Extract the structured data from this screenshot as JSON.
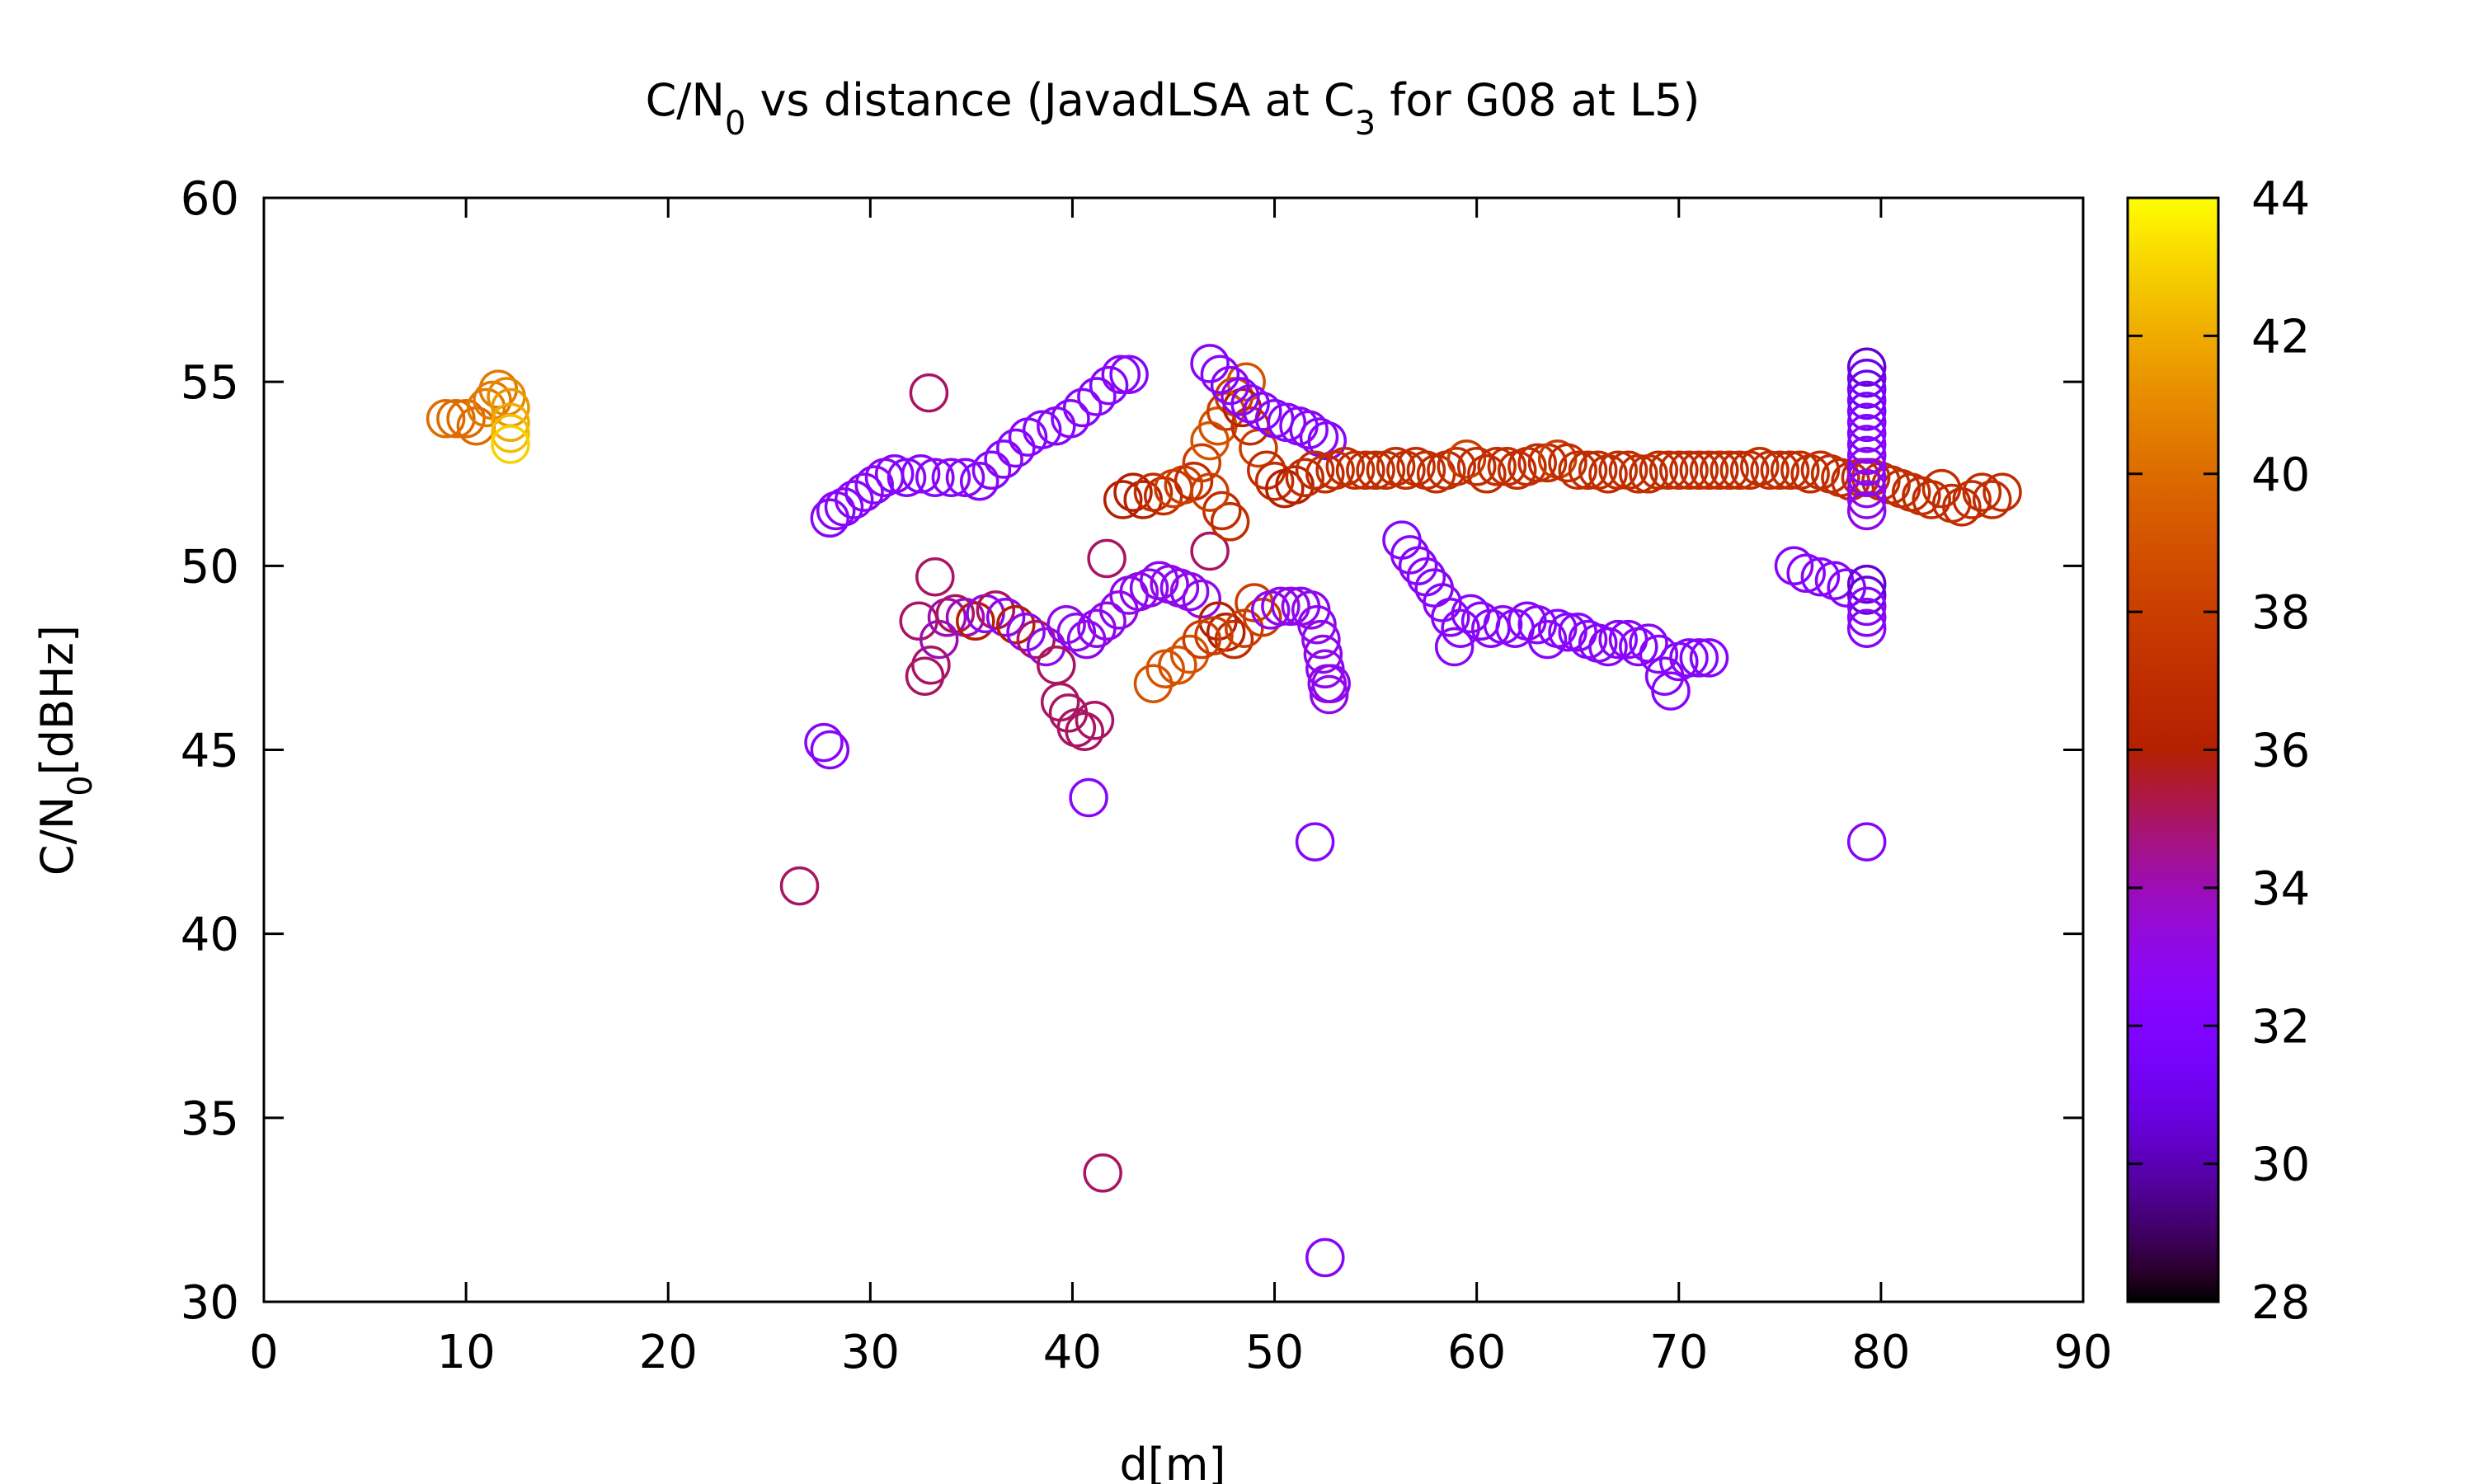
{
  "chart_data": {
    "type": "scatter",
    "title": {
      "parts": [
        {
          "text": "C/N",
          "sub": false
        },
        {
          "text": "0",
          "sub": true
        },
        {
          "text": " vs distance (JavadLSA at C",
          "sub": false
        },
        {
          "text": "3",
          "sub": true
        },
        {
          "text": " for G08 at L5)",
          "sub": false
        }
      ]
    },
    "xlabel": "d[m]",
    "ylabel": {
      "parts": [
        {
          "text": "C/N",
          "sub": false
        },
        {
          "text": "0",
          "sub": true
        },
        {
          "text": "[dBHz]",
          "sub": false
        }
      ]
    },
    "xlim": [
      0,
      90
    ],
    "ylim": [
      30,
      60
    ],
    "xticks": [
      0,
      10,
      20,
      30,
      40,
      50,
      60,
      70,
      80,
      90
    ],
    "yticks": [
      30,
      35,
      40,
      45,
      50,
      55,
      60
    ],
    "colorbar": {
      "range": [
        28,
        44
      ],
      "ticks": [
        28,
        30,
        32,
        34,
        36,
        38,
        40,
        42,
        44
      ],
      "palette": "gnuplot-pm3d-7-5-15"
    },
    "marker": "open-circle",
    "grid": false,
    "points": [
      [
        9.0,
        54.0,
        40
      ],
      [
        9.5,
        54.0,
        40
      ],
      [
        10.0,
        54.0,
        40
      ],
      [
        10.5,
        53.8,
        40
      ],
      [
        11.0,
        54.3,
        40.5
      ],
      [
        11.3,
        54.5,
        40.5
      ],
      [
        11.6,
        54.8,
        40.5
      ],
      [
        12.0,
        54.6,
        41
      ],
      [
        12.2,
        54.3,
        41.5
      ],
      [
        12.2,
        53.9,
        42
      ],
      [
        12.2,
        53.6,
        42.5
      ],
      [
        12.2,
        53.3,
        43
      ],
      [
        26.5,
        41.3,
        35
      ],
      [
        27.7,
        45.2,
        32.5
      ],
      [
        28.0,
        45.0,
        32.5
      ],
      [
        28.0,
        51.3,
        32.5
      ],
      [
        28.3,
        51.5,
        32.5
      ],
      [
        28.7,
        51.6,
        32.5
      ],
      [
        29.2,
        51.8,
        32.5
      ],
      [
        29.7,
        52.0,
        32.5
      ],
      [
        30.2,
        52.2,
        32.5
      ],
      [
        30.7,
        52.4,
        32.5
      ],
      [
        31.2,
        52.5,
        32.5
      ],
      [
        31.8,
        52.4,
        32.5
      ],
      [
        32.5,
        52.5,
        32.5
      ],
      [
        33.2,
        52.4,
        32.5
      ],
      [
        34.0,
        52.4,
        32.5
      ],
      [
        34.7,
        52.4,
        32.5
      ],
      [
        35.4,
        52.3,
        32.5
      ],
      [
        36.0,
        52.6,
        32.5
      ],
      [
        36.6,
        52.9,
        32.5
      ],
      [
        37.2,
        53.2,
        32.5
      ],
      [
        37.8,
        53.5,
        32.5
      ],
      [
        38.5,
        53.7,
        32.5
      ],
      [
        39.2,
        53.8,
        32.5
      ],
      [
        39.9,
        54.0,
        32.5
      ],
      [
        40.5,
        54.3,
        32.5
      ],
      [
        41.2,
        54.6,
        32.5
      ],
      [
        41.8,
        54.9,
        32.5
      ],
      [
        42.4,
        55.2,
        32.5
      ],
      [
        42.8,
        55.2,
        32.5
      ],
      [
        32.9,
        54.7,
        35
      ],
      [
        33.2,
        49.7,
        35
      ],
      [
        32.4,
        48.5,
        35
      ],
      [
        32.7,
        47.0,
        35
      ],
      [
        33.0,
        47.3,
        35
      ],
      [
        33.4,
        48.0,
        34
      ],
      [
        33.8,
        48.6,
        34
      ],
      [
        34.2,
        48.7,
        35
      ],
      [
        34.7,
        48.6,
        34
      ],
      [
        35.2,
        48.5,
        36
      ],
      [
        35.7,
        48.7,
        33
      ],
      [
        36.2,
        48.8,
        35
      ],
      [
        36.7,
        48.6,
        33
      ],
      [
        37.2,
        48.4,
        36
      ],
      [
        37.7,
        48.2,
        33
      ],
      [
        38.2,
        48.0,
        35
      ],
      [
        38.7,
        47.8,
        33
      ],
      [
        39.2,
        47.3,
        35
      ],
      [
        39.4,
        46.3,
        35
      ],
      [
        39.8,
        46.0,
        35
      ],
      [
        40.2,
        45.6,
        35
      ],
      [
        40.6,
        45.5,
        35
      ],
      [
        41.1,
        45.8,
        35
      ],
      [
        39.7,
        48.4,
        33
      ],
      [
        40.2,
        48.2,
        33
      ],
      [
        40.7,
        48.0,
        33
      ],
      [
        41.2,
        48.3,
        33
      ],
      [
        41.7,
        48.5,
        33
      ],
      [
        41.7,
        50.2,
        35
      ],
      [
        42.3,
        48.8,
        33
      ],
      [
        42.8,
        49.2,
        33
      ],
      [
        43.3,
        49.3,
        33
      ],
      [
        43.8,
        49.4,
        33
      ],
      [
        44.3,
        49.6,
        33
      ],
      [
        44.8,
        49.5,
        33
      ],
      [
        45.3,
        49.4,
        33
      ],
      [
        45.8,
        49.3,
        33
      ],
      [
        46.4,
        49.1,
        33
      ],
      [
        46.8,
        50.4,
        35
      ],
      [
        47.2,
        48.5,
        36
      ],
      [
        47.6,
        48.2,
        36
      ],
      [
        48.0,
        48.0,
        37
      ],
      [
        48.5,
        48.3,
        38
      ],
      [
        49.0,
        49.0,
        38
      ],
      [
        49.4,
        48.6,
        38
      ],
      [
        49.8,
        48.8,
        33
      ],
      [
        50.3,
        48.9,
        33
      ],
      [
        50.8,
        48.9,
        33
      ],
      [
        51.3,
        48.9,
        33
      ],
      [
        51.8,
        48.8,
        33
      ],
      [
        52.1,
        48.4,
        33
      ],
      [
        52.3,
        48.0,
        33
      ],
      [
        52.4,
        47.6,
        33
      ],
      [
        52.5,
        47.2,
        33
      ],
      [
        52.6,
        46.8,
        33
      ],
      [
        52.7,
        46.5,
        33
      ],
      [
        52.8,
        46.8,
        33
      ],
      [
        44.0,
        46.8,
        39
      ],
      [
        44.6,
        47.2,
        39
      ],
      [
        45.2,
        47.3,
        39
      ],
      [
        45.8,
        47.6,
        39
      ],
      [
        46.4,
        48.0,
        38
      ],
      [
        47.0,
        48.1,
        38
      ],
      [
        40.8,
        43.7,
        32.5
      ],
      [
        41.5,
        33.5,
        35
      ],
      [
        52.0,
        42.5,
        32.5
      ],
      [
        52.5,
        31.2,
        32.5
      ],
      [
        79.3,
        42.5,
        32.5
      ],
      [
        42.5,
        51.8,
        36
      ],
      [
        43.0,
        52.0,
        36
      ],
      [
        43.5,
        51.8,
        36
      ],
      [
        44.0,
        52.0,
        37
      ],
      [
        44.5,
        51.9,
        37
      ],
      [
        45.0,
        52.1,
        38
      ],
      [
        45.5,
        52.2,
        38
      ],
      [
        46.0,
        52.3,
        37
      ],
      [
        46.4,
        52.8,
        38
      ],
      [
        46.8,
        53.4,
        39
      ],
      [
        47.2,
        53.8,
        39
      ],
      [
        47.6,
        54.2,
        38
      ],
      [
        48.0,
        54.6,
        38
      ],
      [
        48.4,
        54.3,
        36
      ],
      [
        48.8,
        53.8,
        37
      ],
      [
        49.2,
        53.2,
        38
      ],
      [
        49.6,
        52.6,
        37
      ],
      [
        50.0,
        52.3,
        37
      ],
      [
        50.5,
        52.1,
        36
      ],
      [
        51.0,
        52.2,
        36
      ],
      [
        47.4,
        51.5,
        37
      ],
      [
        47.8,
        51.2,
        37
      ],
      [
        46.8,
        52.0,
        38
      ],
      [
        48.6,
        55.0,
        39
      ],
      [
        46.8,
        55.5,
        32.5
      ],
      [
        47.3,
        55.2,
        32.5
      ],
      [
        47.8,
        54.9,
        32.5
      ],
      [
        48.3,
        54.6,
        32.5
      ],
      [
        48.8,
        54.4,
        32.5
      ],
      [
        49.4,
        54.2,
        32.5
      ],
      [
        50.0,
        54.0,
        32.5
      ],
      [
        50.6,
        53.9,
        32.5
      ],
      [
        51.2,
        53.8,
        32.5
      ],
      [
        51.7,
        53.7,
        32.5
      ],
      [
        52.2,
        53.5,
        32.5
      ],
      [
        52.6,
        53.4,
        32.5
      ],
      [
        51.5,
        52.4,
        37
      ],
      [
        52.0,
        52.6,
        37
      ],
      [
        52.5,
        52.5,
        37
      ],
      [
        53.0,
        52.6,
        37
      ],
      [
        53.5,
        52.7,
        37
      ],
      [
        54.0,
        52.6,
        37
      ],
      [
        54.5,
        52.6,
        37
      ],
      [
        55.0,
        52.6,
        37
      ],
      [
        55.5,
        52.6,
        37
      ],
      [
        56.0,
        52.7,
        37
      ],
      [
        56.5,
        52.6,
        37
      ],
      [
        57.0,
        52.7,
        37
      ],
      [
        57.5,
        52.6,
        37
      ],
      [
        58.0,
        52.5,
        37
      ],
      [
        58.5,
        52.6,
        37
      ],
      [
        59.0,
        52.7,
        37
      ],
      [
        59.5,
        52.9,
        38
      ],
      [
        60.0,
        52.7,
        37
      ],
      [
        60.5,
        52.5,
        37
      ],
      [
        61.0,
        52.7,
        37
      ],
      [
        61.5,
        52.7,
        37
      ],
      [
        62.0,
        52.6,
        37
      ],
      [
        62.5,
        52.7,
        37
      ],
      [
        63.0,
        52.8,
        37
      ],
      [
        63.5,
        52.8,
        37
      ],
      [
        64.0,
        52.9,
        38
      ],
      [
        64.5,
        52.8,
        37
      ],
      [
        65.0,
        52.6,
        37
      ],
      [
        65.5,
        52.6,
        37
      ],
      [
        66.0,
        52.6,
        37
      ],
      [
        66.5,
        52.5,
        37
      ],
      [
        67.0,
        52.6,
        37
      ],
      [
        67.5,
        52.6,
        37
      ],
      [
        68.0,
        52.5,
        37
      ],
      [
        68.5,
        52.5,
        37
      ],
      [
        69.0,
        52.6,
        37
      ],
      [
        69.5,
        52.6,
        37
      ],
      [
        70.0,
        52.6,
        37
      ],
      [
        70.5,
        52.6,
        37
      ],
      [
        71.0,
        52.6,
        37
      ],
      [
        71.5,
        52.6,
        37
      ],
      [
        72.0,
        52.6,
        37
      ],
      [
        72.5,
        52.6,
        37
      ],
      [
        73.0,
        52.6,
        37
      ],
      [
        73.5,
        52.6,
        37
      ],
      [
        74.0,
        52.7,
        37
      ],
      [
        74.5,
        52.6,
        37
      ],
      [
        75.0,
        52.6,
        37
      ],
      [
        75.5,
        52.6,
        37
      ],
      [
        76.0,
        52.6,
        37
      ],
      [
        76.5,
        52.5,
        37
      ],
      [
        77.0,
        52.6,
        37
      ],
      [
        77.5,
        52.5,
        37
      ],
      [
        78.0,
        52.4,
        37
      ],
      [
        78.5,
        52.3,
        37
      ],
      [
        79.0,
        52.4,
        37
      ],
      [
        79.5,
        52.4,
        37
      ],
      [
        80.0,
        52.3,
        37
      ],
      [
        80.5,
        52.2,
        37
      ],
      [
        81.0,
        52.1,
        37
      ],
      [
        81.5,
        52.0,
        37
      ],
      [
        82.0,
        51.9,
        37
      ],
      [
        82.5,
        51.8,
        37
      ],
      [
        83.0,
        52.1,
        37
      ],
      [
        83.5,
        51.7,
        37
      ],
      [
        84.0,
        51.6,
        37
      ],
      [
        84.5,
        51.8,
        37
      ],
      [
        85.0,
        52.0,
        37
      ],
      [
        85.5,
        51.8,
        37
      ],
      [
        86.0,
        52.0,
        37
      ],
      [
        56.3,
        50.7,
        32.5
      ],
      [
        56.7,
        50.3,
        32.5
      ],
      [
        57.1,
        50.0,
        32.5
      ],
      [
        57.5,
        49.7,
        32.5
      ],
      [
        57.9,
        49.4,
        32.5
      ],
      [
        58.3,
        49.0,
        32.5
      ],
      [
        58.7,
        48.6,
        32.5
      ],
      [
        59.2,
        48.3,
        32.5
      ],
      [
        58.9,
        47.8,
        32.5
      ],
      [
        59.7,
        48.7,
        32.5
      ],
      [
        60.2,
        48.5,
        32.5
      ],
      [
        60.7,
        48.3,
        32.5
      ],
      [
        61.3,
        48.4,
        32.5
      ],
      [
        61.9,
        48.3,
        32.5
      ],
      [
        62.5,
        48.5,
        32.5
      ],
      [
        63.0,
        48.4,
        32.5
      ],
      [
        63.5,
        48.0,
        32.5
      ],
      [
        64.0,
        48.3,
        32.5
      ],
      [
        64.5,
        48.2,
        32.5
      ],
      [
        65.0,
        48.2,
        32.5
      ],
      [
        65.5,
        48.0,
        32.5
      ],
      [
        66.0,
        47.9,
        32.5
      ],
      [
        66.5,
        47.8,
        32.5
      ],
      [
        67.0,
        48.0,
        32.5
      ],
      [
        67.5,
        48.0,
        32.5
      ],
      [
        68.0,
        47.8,
        32.5
      ],
      [
        68.5,
        47.9,
        32.5
      ],
      [
        69.0,
        47.6,
        32.5
      ],
      [
        69.3,
        47.0,
        32.5
      ],
      [
        69.6,
        46.6,
        32.5
      ],
      [
        70.0,
        47.4,
        32.5
      ],
      [
        70.5,
        47.5,
        32.5
      ],
      [
        71.0,
        47.5,
        32.5
      ],
      [
        71.5,
        47.5,
        32.5
      ],
      [
        75.7,
        50.0,
        32.5
      ],
      [
        76.3,
        49.8,
        32.5
      ],
      [
        77.0,
        49.7,
        32.5
      ],
      [
        77.7,
        49.6,
        32.5
      ],
      [
        78.3,
        49.4,
        32.5
      ],
      [
        79.3,
        55.4,
        30.5
      ],
      [
        79.3,
        55.1,
        31
      ],
      [
        79.3,
        54.8,
        31
      ],
      [
        79.3,
        54.5,
        31.5
      ],
      [
        79.3,
        54.2,
        31.5
      ],
      [
        79.3,
        53.9,
        32
      ],
      [
        79.3,
        53.6,
        32
      ],
      [
        79.3,
        53.3,
        32.5
      ],
      [
        79.3,
        53.0,
        32.5
      ],
      [
        79.3,
        52.7,
        32.5
      ],
      [
        79.3,
        52.4,
        33
      ],
      [
        79.3,
        52.1,
        33
      ],
      [
        79.3,
        51.8,
        33
      ],
      [
        79.3,
        51.5,
        33
      ],
      [
        79.3,
        49.5,
        30.5
      ],
      [
        79.3,
        49.2,
        30.5
      ],
      [
        79.3,
        48.9,
        32.5
      ],
      [
        79.3,
        48.6,
        32.5
      ],
      [
        79.3,
        48.3,
        32.5
      ]
    ]
  }
}
